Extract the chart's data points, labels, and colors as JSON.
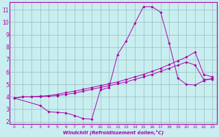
{
  "xlabel": "Windchill (Refroidissement éolien,°C)",
  "background_color": "#c8eef0",
  "line_color": "#aa00aa",
  "grid_color": "#99bbbb",
  "xlim": [
    -0.5,
    23.5
  ],
  "ylim": [
    1.8,
    11.6
  ],
  "xticks": [
    0,
    1,
    2,
    3,
    4,
    5,
    6,
    7,
    8,
    9,
    10,
    11,
    12,
    13,
    14,
    15,
    16,
    17,
    18,
    19,
    20,
    21,
    22,
    23
  ],
  "yticks": [
    2,
    3,
    4,
    5,
    6,
    7,
    8,
    9,
    10,
    11
  ],
  "series": [
    {
      "x": [
        0,
        1,
        2,
        3,
        4,
        5,
        6,
        7,
        8,
        9,
        10,
        11,
        12,
        13,
        14,
        15,
        16,
        17,
        18,
        19,
        20,
        21,
        22,
        23
      ],
      "y": [
        3.9,
        4.0,
        4.0,
        4.05,
        4.1,
        4.2,
        4.35,
        4.45,
        4.6,
        4.75,
        4.9,
        5.05,
        5.2,
        5.4,
        5.6,
        5.8,
        6.05,
        6.3,
        6.6,
        6.9,
        7.2,
        7.6,
        5.8,
        5.6
      ]
    },
    {
      "x": [
        0,
        1,
        2,
        3,
        4,
        5,
        6,
        7,
        8,
        9,
        10,
        11,
        12,
        13,
        14,
        15,
        16,
        17,
        18,
        19,
        20,
        21,
        22,
        23
      ],
      "y": [
        3.9,
        4.0,
        4.0,
        4.02,
        4.05,
        4.1,
        4.2,
        4.3,
        4.45,
        4.6,
        4.75,
        4.9,
        5.05,
        5.2,
        5.4,
        5.6,
        5.8,
        6.05,
        6.3,
        6.55,
        6.8,
        6.55,
        5.4,
        5.4
      ]
    },
    {
      "x": [
        0,
        3,
        4,
        5,
        6,
        7,
        8,
        9,
        10,
        11,
        12,
        13,
        14,
        15,
        16,
        17,
        18,
        19,
        20,
        21,
        22,
        23
      ],
      "y": [
        3.9,
        3.3,
        2.8,
        2.75,
        2.7,
        2.5,
        2.25,
        2.2,
        4.55,
        4.75,
        7.4,
        8.5,
        9.9,
        11.25,
        11.25,
        10.8,
        8.3,
        5.5,
        5.0,
        4.95,
        5.3,
        5.5
      ]
    }
  ]
}
